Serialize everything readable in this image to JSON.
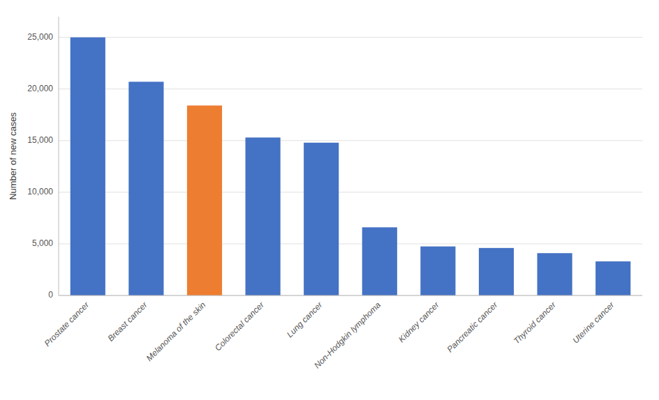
{
  "chart_data": {
    "type": "bar",
    "categories": [
      "Prostate cancer",
      "Breast cancer",
      "Melanoma of the skin",
      "Colorectal cancer",
      "Lung cancer",
      "Non-Hodgkin lymphoma",
      "Kidney cancer",
      "Pancreatic cancer",
      "Thyroid cancer",
      "Uterine cancer"
    ],
    "values": [
      25000,
      20700,
      18400,
      15300,
      14800,
      6600,
      4750,
      4600,
      4100,
      3300
    ],
    "colors": [
      "#4472C4",
      "#4472C4",
      "#ED7D31",
      "#4472C4",
      "#4472C4",
      "#4472C4",
      "#4472C4",
      "#4472C4",
      "#4472C4",
      "#4472C4"
    ],
    "ylabel": "Number of new cases",
    "ylim": [
      0,
      27000
    ],
    "yticks": [
      0,
      {
        "value": 5000,
        "label": "5,000"
      },
      {
        "value": 10000,
        "label": "10,000"
      },
      {
        "value": 15000,
        "label": "15,000"
      },
      {
        "value": 20000,
        "label": "20,000"
      },
      {
        "value": 25000,
        "label": "25,000"
      }
    ],
    "grid": true
  }
}
